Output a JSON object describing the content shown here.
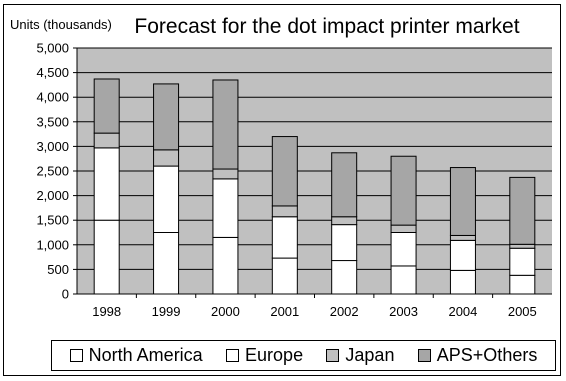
{
  "chart_data": {
    "type": "bar",
    "stacked": true,
    "title": "Forecast for the dot impact printer market",
    "ylabel": "Units (thousands)",
    "xlabel": "",
    "categories": [
      "1998",
      "1999",
      "2000",
      "2001",
      "2002",
      "2003",
      "2004",
      "2005"
    ],
    "ylim": [
      0,
      5000
    ],
    "yticks": [
      "0",
      "500",
      "1,000",
      "1,500",
      "2,000",
      "2,500",
      "3,000",
      "3,500",
      "4,000",
      "4,500",
      "5,000"
    ],
    "grid": true,
    "legend_position": "bottom",
    "plot_background": "#c0c0c0",
    "series": [
      {
        "name": "North America",
        "color": "#ffffff",
        "values": [
          1500,
          1250,
          1150,
          730,
          680,
          570,
          480,
          380
        ]
      },
      {
        "name": "Europe",
        "color": "#ffffff",
        "values": [
          1470,
          1350,
          1190,
          840,
          730,
          680,
          610,
          550
        ]
      },
      {
        "name": "Japan",
        "color": "#c0c0c0",
        "values": [
          300,
          330,
          200,
          220,
          160,
          150,
          100,
          80
        ]
      },
      {
        "name": "APS+Others",
        "color": "#a6a6a6",
        "values": [
          1100,
          1340,
          1810,
          1410,
          1300,
          1400,
          1380,
          1360
        ]
      }
    ]
  }
}
